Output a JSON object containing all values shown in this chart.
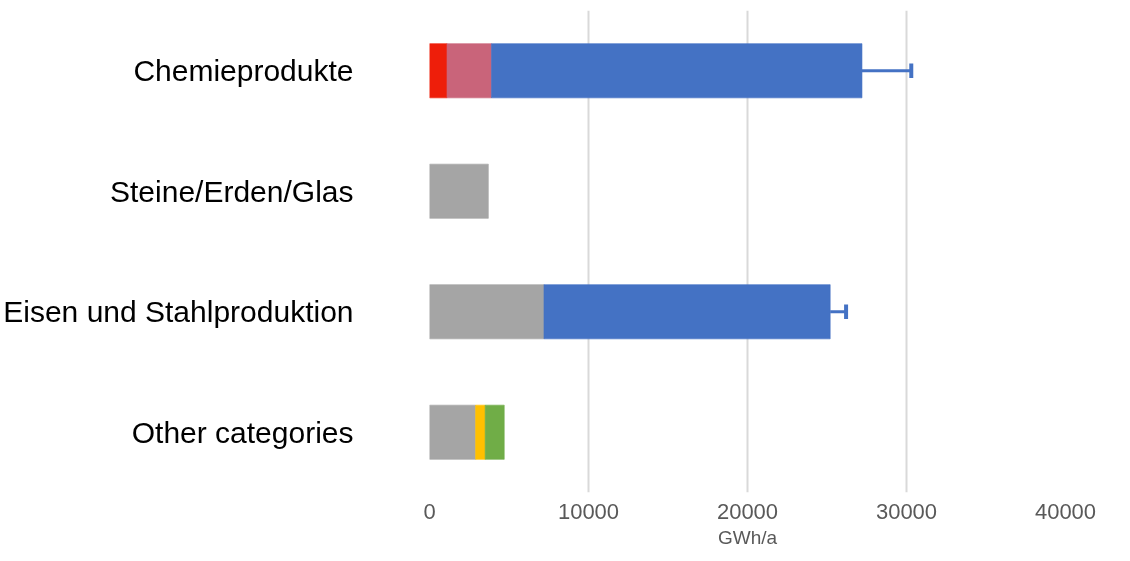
{
  "chart_data": {
    "type": "bar",
    "orientation": "horizontal",
    "stacked": true,
    "xlabel": "GWh/a",
    "categories": [
      "Chemieprodukte",
      "Steine/Erden/Glas",
      "Eisen und Stahlproduktion",
      "Other categories"
    ],
    "series": [
      {
        "color": "#ee1e0a",
        "values": [
          1100,
          null,
          null,
          null
        ]
      },
      {
        "color": "#c9647a",
        "values": [
          2800,
          null,
          null,
          null
        ]
      },
      {
        "color": "#a5a5a5",
        "values": [
          null,
          3700,
          7200,
          2900
        ]
      },
      {
        "color": "#4472c4",
        "values": [
          23300,
          null,
          18000,
          null
        ],
        "errors": [
          [
            27200,
            30300
          ],
          null,
          [
            25200,
            26200
          ],
          null
        ]
      },
      {
        "color": "#ffc000",
        "values": [
          null,
          null,
          null,
          600
        ]
      },
      {
        "color": "#70ad47",
        "values": [
          null,
          null,
          null,
          1200
        ]
      }
    ],
    "xlim": [
      0,
      40000
    ],
    "xticks": [
      0,
      10000,
      20000,
      30000,
      40000
    ],
    "grid": "x"
  }
}
